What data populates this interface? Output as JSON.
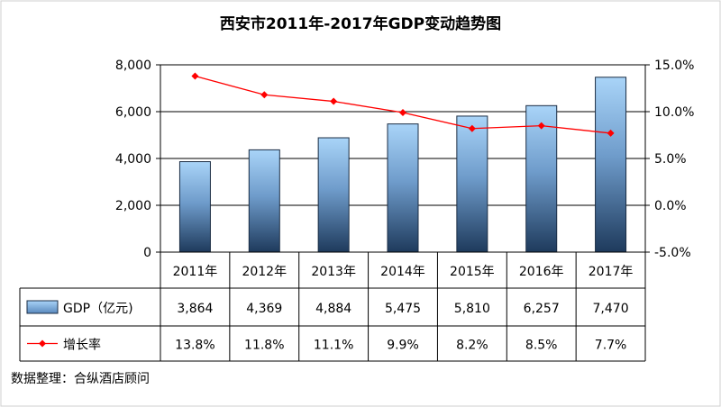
{
  "chart_data": {
    "type": "bar",
    "title": "西安市2011年-2017年GDP变动趋势图",
    "categories": [
      "2011年",
      "2012年",
      "2013年",
      "2014年",
      "2015年",
      "2016年",
      "2017年"
    ],
    "series": [
      {
        "name": "GDP（亿元)",
        "type": "bar",
        "axis": "left",
        "values": [
          3864,
          4369,
          4884,
          5475,
          5810,
          6257,
          7470
        ],
        "labels": [
          "3,864",
          "4,369",
          "4,884",
          "5,475",
          "5,810",
          "6,257",
          "7,470"
        ],
        "color": "#8fc3ee"
      },
      {
        "name": "增长率",
        "type": "line",
        "axis": "right",
        "values": [
          13.8,
          11.8,
          11.1,
          9.9,
          8.2,
          8.5,
          7.7
        ],
        "labels": [
          "13.8%",
          "11.8%",
          "11.1%",
          "9.9%",
          "8.2%",
          "8.5%",
          "7.7%"
        ],
        "color": "#ff0000"
      }
    ],
    "y_left": {
      "range": [
        0,
        8000
      ],
      "ticks": [
        0,
        2000,
        4000,
        6000,
        8000
      ],
      "tick_labels": [
        "0",
        "2,000",
        "4,000",
        "6,000",
        "8,000"
      ]
    },
    "y_right": {
      "range": [
        -5,
        15
      ],
      "ticks": [
        -5,
        0,
        5,
        10,
        15
      ],
      "tick_labels": [
        "-5.0%",
        "0.0%",
        "5.0%",
        "10.0%",
        "15.0%"
      ]
    },
    "grid": true,
    "legend": "data-table-below"
  },
  "source": "数据整理：合纵酒店顾问"
}
